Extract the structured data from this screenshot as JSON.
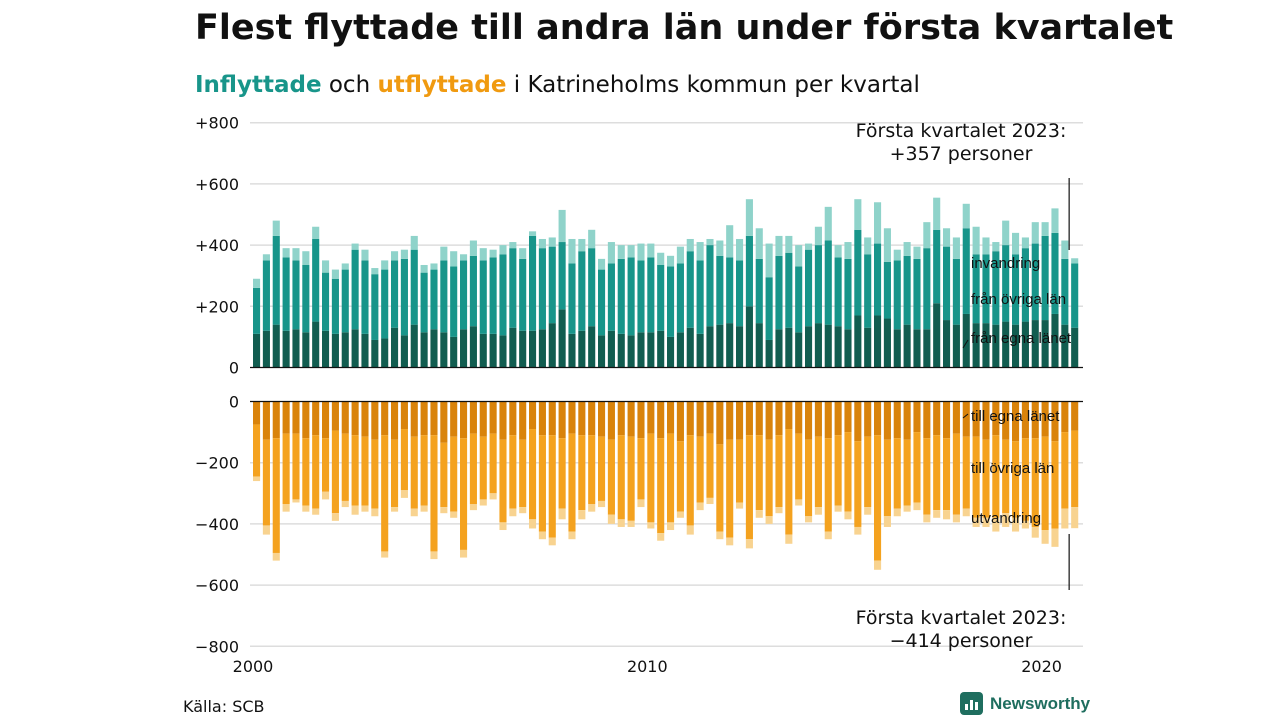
{
  "title": "Flest flyttade till andra län under första kvartalet",
  "subtitle": {
    "inflow_word": "Inflyttade",
    "mid_word": "och",
    "outflow_word": "utflyttade",
    "rest": "i Katrineholms kommun per kvartal"
  },
  "source": "Källa: SCB",
  "brand": {
    "name": "Newsworthy",
    "icon": "bar-chart-speech-icon"
  },
  "colors": {
    "in_same_county": "#115d50",
    "in_other_counties": "#18958a",
    "in_immigration": "#8fd3ca",
    "out_same_county": "#d9830b",
    "out_other_counties": "#f4a21f",
    "out_emigration": "#f8d390",
    "inflow_text": "#18958a",
    "outflow_text": "#f09a10",
    "grid": "#dddddd",
    "axis": "#111111",
    "brand": "#1f6e5f"
  },
  "chart_data": {
    "type": "bar",
    "stacked": true,
    "grid": true,
    "x_ticks": [
      "2000",
      "2010",
      "2020"
    ],
    "y_top": {
      "ticks": [
        "+800",
        "+600",
        "+400",
        "+200",
        "0"
      ],
      "tick_values": [
        800,
        600,
        400,
        200,
        0
      ],
      "ylim": [
        0,
        800
      ]
    },
    "y_bottom": {
      "ticks": [
        "0",
        "−200",
        "−400",
        "−600",
        "−800"
      ],
      "tick_values": [
        0,
        -200,
        -400,
        -600,
        -800
      ],
      "ylim": [
        -800,
        0
      ]
    },
    "periods": {
      "first": "2000 Q1",
      "last": "2023 Q1",
      "frequency": "quarterly"
    },
    "annotation_top": [
      "Första kvartalet 2023:",
      "+357 personer"
    ],
    "annotation_bottom": [
      "Första kvartalet 2023:",
      "−414 personer"
    ],
    "inflow_series": [
      {
        "name": "från egna länet",
        "color": "#115d50",
        "values": [
          110,
          120,
          140,
          120,
          125,
          115,
          150,
          120,
          110,
          115,
          125,
          110,
          90,
          95,
          130,
          105,
          140,
          115,
          125,
          115,
          100,
          125,
          135,
          110,
          110,
          105,
          130,
          120,
          120,
          125,
          145,
          190,
          110,
          120,
          135,
          105,
          120,
          110,
          105,
          115,
          115,
          120,
          100,
          115,
          130,
          110,
          135,
          140,
          145,
          135,
          200,
          145,
          90,
          125,
          130,
          115,
          135,
          145,
          140,
          135,
          125,
          170,
          130,
          170,
          160,
          125,
          140,
          125,
          125,
          210,
          155,
          140,
          175,
          145,
          145,
          140,
          150,
          140,
          150,
          155,
          155,
          175,
          140,
          130
        ]
      },
      {
        "name": "från övriga län",
        "color": "#18958a",
        "values": [
          150,
          230,
          290,
          240,
          225,
          220,
          270,
          190,
          180,
          205,
          260,
          240,
          215,
          225,
          220,
          250,
          245,
          195,
          195,
          235,
          230,
          225,
          230,
          240,
          250,
          265,
          260,
          235,
          310,
          265,
          250,
          220,
          230,
          260,
          255,
          215,
          220,
          245,
          255,
          235,
          245,
          215,
          230,
          225,
          250,
          240,
          265,
          225,
          215,
          215,
          230,
          210,
          205,
          240,
          245,
          215,
          250,
          255,
          275,
          225,
          230,
          280,
          240,
          235,
          185,
          225,
          225,
          230,
          265,
          240,
          240,
          215,
          280,
          225,
          225,
          240,
          250,
          230,
          240,
          250,
          275,
          265,
          215,
          210
        ]
      },
      {
        "name": "invandring",
        "color": "#8fd3ca",
        "values": [
          30,
          20,
          50,
          30,
          40,
          45,
          40,
          40,
          30,
          20,
          20,
          35,
          20,
          30,
          30,
          30,
          45,
          25,
          20,
          45,
          50,
          20,
          50,
          40,
          25,
          30,
          20,
          35,
          15,
          30,
          30,
          105,
          80,
          40,
          60,
          35,
          70,
          45,
          40,
          55,
          45,
          40,
          35,
          55,
          40,
          60,
          20,
          50,
          105,
          70,
          120,
          100,
          110,
          65,
          55,
          70,
          20,
          60,
          110,
          40,
          55,
          100,
          55,
          135,
          110,
          35,
          45,
          40,
          85,
          105,
          60,
          70,
          80,
          90,
          55,
          30,
          80,
          70,
          35,
          70,
          45,
          80,
          60,
          17
        ]
      }
    ],
    "outflow_series": [
      {
        "name": "till egna länet",
        "color": "#d9830b",
        "values": [
          -75,
          -125,
          -120,
          -105,
          -105,
          -120,
          -110,
          -120,
          -95,
          -105,
          -110,
          -115,
          -125,
          -110,
          -125,
          -90,
          -115,
          -110,
          -110,
          -135,
          -115,
          -120,
          -105,
          -115,
          -105,
          -125,
          -110,
          -125,
          -90,
          -110,
          -110,
          -120,
          -105,
          -110,
          -110,
          -115,
          -125,
          -110,
          -115,
          -120,
          -105,
          -120,
          -105,
          -130,
          -110,
          -115,
          -105,
          -140,
          -125,
          -125,
          -110,
          -110,
          -125,
          -110,
          -90,
          -105,
          -125,
          -115,
          -120,
          -110,
          -100,
          -130,
          -115,
          -110,
          -125,
          -120,
          -125,
          -100,
          -120,
          -110,
          -120,
          -105,
          -115,
          -115,
          -125,
          -110,
          -125,
          -130,
          -120,
          -120,
          -115,
          -130,
          -100,
          -95
        ]
      },
      {
        "name": "till övriga län",
        "color": "#f4a21f",
        "values": [
          -170,
          -280,
          -375,
          -230,
          -215,
          -220,
          -240,
          -175,
          -270,
          -220,
          -230,
          -225,
          -225,
          -380,
          -220,
          -200,
          -235,
          -230,
          -380,
          -210,
          -245,
          -365,
          -230,
          -205,
          -195,
          -270,
          -240,
          -220,
          -295,
          -315,
          -335,
          -230,
          -320,
          -245,
          -225,
          -210,
          -245,
          -275,
          -275,
          -200,
          -290,
          -310,
          -290,
          -230,
          -295,
          -215,
          -210,
          -285,
          -320,
          -205,
          -340,
          -245,
          -250,
          -235,
          -345,
          -215,
          -250,
          -230,
          -305,
          -230,
          -260,
          -280,
          -230,
          -410,
          -250,
          -230,
          -215,
          -230,
          -250,
          -245,
          -235,
          -265,
          -235,
          -265,
          -255,
          -270,
          -240,
          -250,
          -270,
          -290,
          -305,
          -285,
          -250,
          -250
        ]
      },
      {
        "name": "utvandring",
        "color": "#f8d390",
        "values": [
          -15,
          -30,
          -25,
          -25,
          -10,
          -20,
          -20,
          -25,
          -25,
          -20,
          -30,
          -20,
          -25,
          -20,
          -15,
          -25,
          -25,
          -20,
          -25,
          -20,
          -20,
          -25,
          -20,
          -20,
          -20,
          -25,
          -25,
          -20,
          -30,
          -25,
          -25,
          -35,
          -25,
          -30,
          -25,
          -20,
          -30,
          -25,
          -20,
          -25,
          -20,
          -25,
          -25,
          -20,
          -30,
          -25,
          -20,
          -25,
          -25,
          -20,
          -30,
          -25,
          -25,
          -20,
          -30,
          -20,
          -20,
          -25,
          -25,
          -20,
          -25,
          -25,
          -25,
          -30,
          -35,
          -25,
          -20,
          -25,
          -25,
          -25,
          -30,
          -25,
          -25,
          -30,
          -30,
          -45,
          -45,
          -45,
          -25,
          -35,
          -45,
          -60,
          -65,
          -69
        ]
      }
    ]
  }
}
